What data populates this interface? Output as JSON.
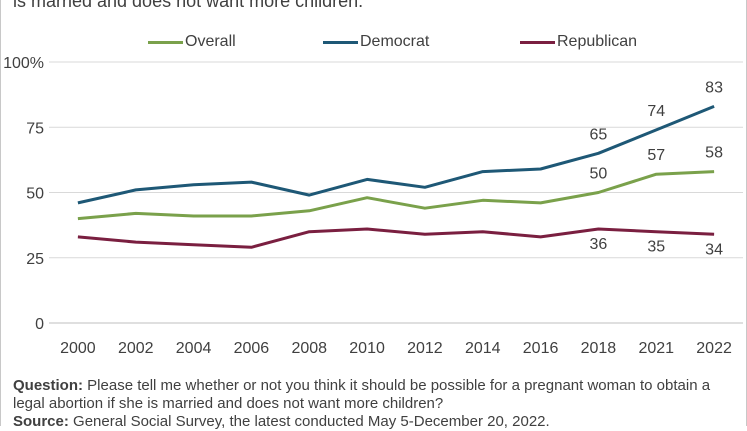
{
  "title_fragment": "is married and does not want more children.",
  "question_label": "Question:",
  "question_text": "Please tell me whether or not you think it should be possible for a pregnant woman to obtain a legal abortion if she is married and does not want more children?",
  "source_label": "Source:",
  "source_text": "General Social Survey, the latest conducted May 5-December 20, 2022.",
  "colors": {
    "overall": "#7aa14b",
    "democrat": "#1e5876",
    "republican": "#7a1f40",
    "grid": "#d9d9d9"
  },
  "chart_data": {
    "type": "line",
    "categories": [
      "2000",
      "2002",
      "2004",
      "2006",
      "2008",
      "2010",
      "2012",
      "2014",
      "2016",
      "2018",
      "2021",
      "2022"
    ],
    "y_ticks": [
      "0",
      "25",
      "50",
      "75",
      "100%"
    ],
    "ylim": [
      0,
      100
    ],
    "grid": true,
    "legend_position": "top",
    "series": [
      {
        "name": "Overall",
        "color_key": "overall",
        "values": [
          40,
          42,
          41,
          41,
          43,
          48,
          44,
          47,
          46,
          50,
          57,
          58
        ],
        "labels": {
          "9": "50",
          "10": "57",
          "11": "58"
        }
      },
      {
        "name": "Democrat",
        "color_key": "democrat",
        "values": [
          46,
          51,
          53,
          54,
          49,
          55,
          52,
          58,
          59,
          65,
          74,
          83
        ],
        "labels": {
          "9": "65",
          "10": "74",
          "11": "83"
        }
      },
      {
        "name": "Republican",
        "color_key": "republican",
        "values": [
          33,
          31,
          30,
          29,
          35,
          36,
          34,
          35,
          33,
          36,
          35,
          34
        ],
        "labels": {
          "9": "36",
          "10": "35",
          "11": "34"
        }
      }
    ]
  }
}
